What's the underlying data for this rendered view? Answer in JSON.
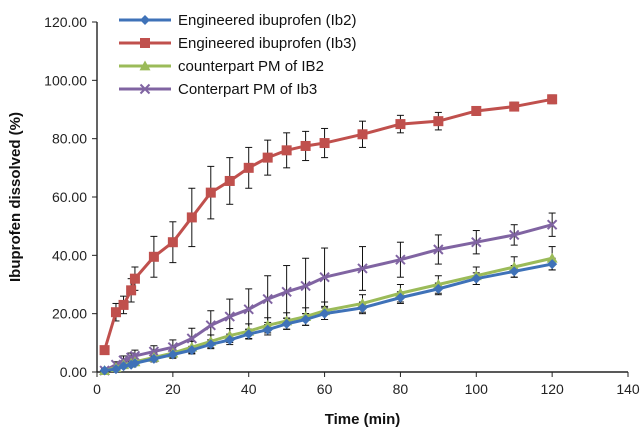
{
  "chart_data": {
    "type": "line",
    "title": "",
    "xlabel": "Time (min)",
    "ylabel": "Ibuprofen dissolved (%)",
    "xlim": [
      0,
      140
    ],
    "ylim": [
      0,
      120
    ],
    "xticks": [
      0,
      20,
      40,
      60,
      80,
      100,
      120,
      140
    ],
    "yticks": [
      0,
      20,
      40,
      60,
      80,
      100,
      120
    ],
    "xtick_labels": [
      "0",
      "20",
      "40",
      "60",
      "80",
      "100",
      "120",
      "140"
    ],
    "ytick_labels": [
      "0.00",
      "20.00",
      "40.00",
      "60.00",
      "80.00",
      "100.00",
      "120.00"
    ],
    "grid": false,
    "legend_position": "top-left",
    "series": [
      {
        "name": "Engineered ibuprofen (Ib2)",
        "color": "#3F72B8",
        "marker": "diamond",
        "x": [
          2,
          5,
          7,
          9,
          10,
          15,
          20,
          25,
          30,
          35,
          40,
          45,
          50,
          55,
          60,
          70,
          80,
          90,
          100,
          110,
          120
        ],
        "y": [
          0.5,
          1.0,
          2.0,
          2.5,
          3.0,
          4.5,
          6.0,
          7.5,
          9.5,
          11.0,
          13.0,
          14.5,
          16.5,
          18.0,
          20.0,
          22.0,
          25.5,
          28.5,
          32.0,
          34.5,
          37.0
        ],
        "err": [
          0.3,
          0.5,
          0.6,
          0.6,
          0.8,
          1.0,
          1.2,
          1.3,
          1.5,
          1.6,
          1.7,
          1.8,
          1.9,
          2.0,
          2.0,
          2.0,
          2.0,
          2.0,
          2.0,
          2.0,
          2.0
        ]
      },
      {
        "name": "Engineered ibuprofen (Ib3)",
        "color": "#C0504D",
        "marker": "square",
        "x": [
          2,
          5,
          7,
          9,
          10,
          15,
          20,
          25,
          30,
          35,
          40,
          45,
          50,
          55,
          60,
          70,
          80,
          90,
          100,
          110,
          120
        ],
        "y": [
          7.5,
          20.5,
          23.0,
          28.0,
          32.0,
          39.5,
          44.5,
          53.0,
          61.5,
          65.5,
          70.0,
          73.5,
          76.0,
          77.5,
          78.5,
          81.5,
          85.0,
          86.0,
          89.5,
          91.0,
          93.5
        ],
        "err": [
          1.0,
          3.0,
          3.0,
          4.0,
          4.0,
          7.0,
          7.0,
          10.0,
          9.0,
          8.0,
          7.0,
          6.0,
          6.0,
          5.0,
          5.0,
          4.5,
          3.0,
          3.0,
          1.5,
          1.5,
          1.5
        ]
      },
      {
        "name": "counterpart PM of IB2",
        "color": "#9BBB59",
        "marker": "triangle",
        "x": [
          2,
          5,
          7,
          9,
          10,
          15,
          20,
          25,
          30,
          35,
          40,
          45,
          50,
          55,
          60,
          70,
          80,
          90,
          100,
          110,
          120
        ],
        "y": [
          0.5,
          1.5,
          2.5,
          3.0,
          3.5,
          5.0,
          6.5,
          8.5,
          10.5,
          12.5,
          14.0,
          16.0,
          17.5,
          19.0,
          21.0,
          23.5,
          27.0,
          30.0,
          33.0,
          36.0,
          39.0
        ],
        "err": [
          0.5,
          0.8,
          1.0,
          1.0,
          1.2,
          1.5,
          1.8,
          2.0,
          2.2,
          2.4,
          2.5,
          2.6,
          2.8,
          3.0,
          3.0,
          3.0,
          3.0,
          3.0,
          3.0,
          3.5,
          4.0
        ]
      },
      {
        "name": "Conterpart PM of Ib3",
        "color": "#8064A2",
        "marker": "x",
        "x": [
          2,
          5,
          7,
          9,
          10,
          15,
          20,
          25,
          30,
          35,
          40,
          45,
          50,
          55,
          60,
          70,
          80,
          90,
          100,
          110,
          120
        ],
        "y": [
          0.5,
          2.5,
          4.0,
          5.0,
          5.5,
          7.0,
          8.5,
          11.5,
          16.0,
          19.0,
          21.5,
          25.0,
          27.5,
          29.5,
          32.5,
          35.5,
          38.5,
          42.0,
          44.5,
          47.0,
          50.5
        ],
        "err": [
          0.5,
          1.0,
          1.5,
          1.5,
          2.0,
          2.0,
          2.5,
          3.5,
          5.0,
          6.0,
          7.0,
          8.0,
          9.0,
          9.5,
          10.0,
          7.5,
          6.0,
          5.0,
          4.0,
          3.5,
          4.0
        ]
      }
    ]
  }
}
